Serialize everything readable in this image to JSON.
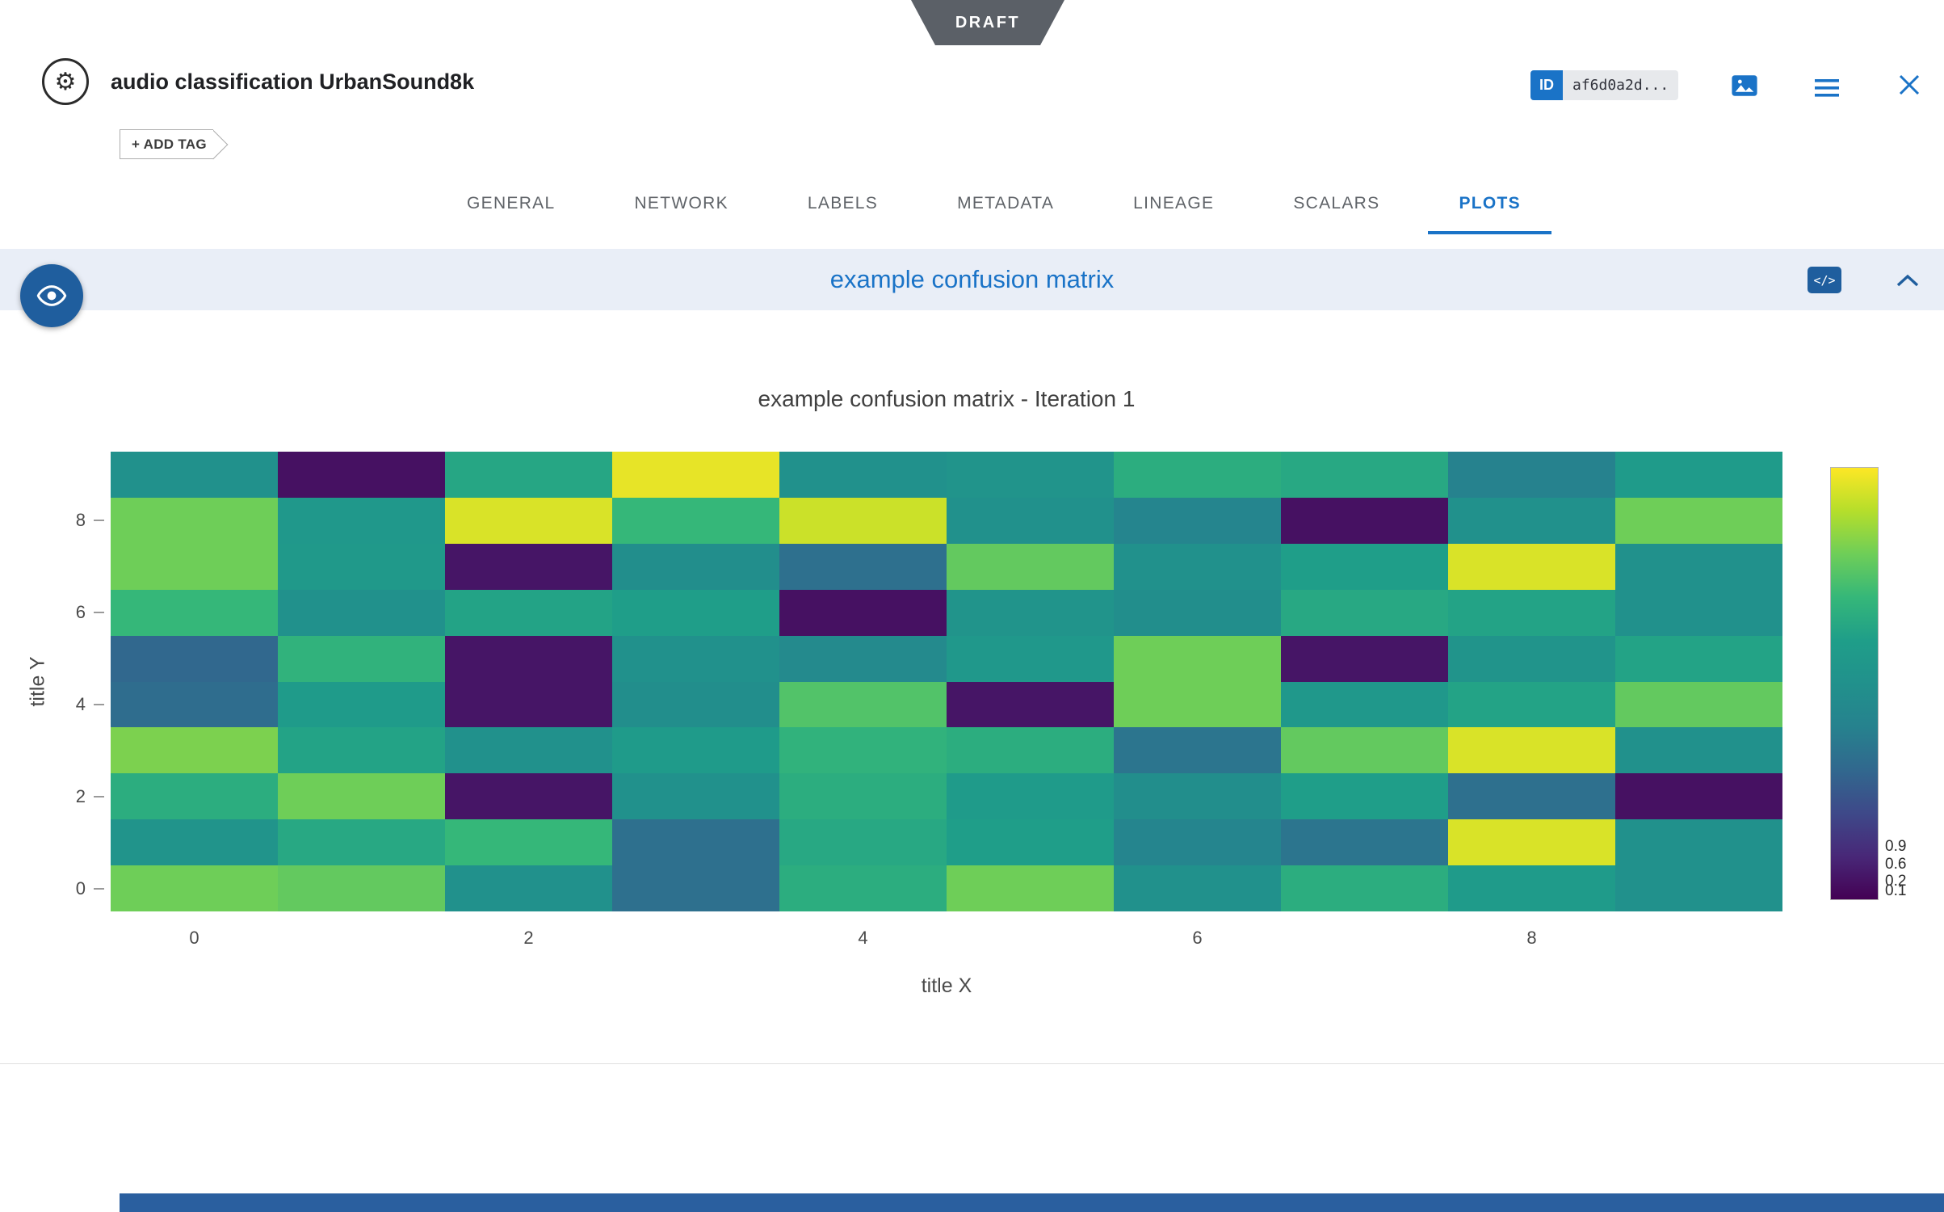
{
  "ribbon": {
    "label": "DRAFT"
  },
  "header": {
    "title": "audio classification UrbanSound8k",
    "add_tag_label": "+ ADD TAG",
    "id_badge": {
      "label": "ID",
      "value": "af6d0a2d..."
    }
  },
  "tabs": {
    "items": [
      {
        "label": "GENERAL",
        "active": false
      },
      {
        "label": "NETWORK",
        "active": false
      },
      {
        "label": "LABELS",
        "active": false
      },
      {
        "label": "METADATA",
        "active": false
      },
      {
        "label": "LINEAGE",
        "active": false
      },
      {
        "label": "SCALARS",
        "active": false
      },
      {
        "label": "PLOTS",
        "active": true
      }
    ]
  },
  "section": {
    "title": "example confusion matrix",
    "code_icon_label": "</>"
  },
  "chart_data": {
    "type": "heatmap",
    "title": "example confusion matrix - Iteration 1",
    "xlabel": "title X",
    "ylabel": "title Y",
    "x_ticks": [
      0,
      2,
      4,
      6,
      8
    ],
    "y_ticks": [
      0,
      2,
      4,
      6,
      8
    ],
    "x_range": [
      -0.5,
      9.5
    ],
    "y_range": [
      -0.5,
      9.5
    ],
    "grid": false,
    "colormap": "viridis",
    "viridis_stops": [
      "#440154",
      "#482878",
      "#3e4989",
      "#31688e",
      "#26828e",
      "#21918c",
      "#1f9e89",
      "#35b779",
      "#6ece58",
      "#b5de2b",
      "#fde725"
    ],
    "colorbar_tick_labels": [
      "0.9",
      "0.6",
      "0.2",
      "0.1"
    ],
    "rows_top_to_bottom": [
      [
        0.5,
        0.04,
        0.63,
        0.97,
        0.5,
        0.52,
        0.66,
        0.64,
        0.4,
        0.58
      ],
      [
        0.8,
        0.55,
        0.95,
        0.7,
        0.93,
        0.5,
        0.42,
        0.04,
        0.5,
        0.8
      ],
      [
        0.8,
        0.56,
        0.05,
        0.48,
        0.33,
        0.78,
        0.5,
        0.6,
        0.95,
        0.5
      ],
      [
        0.7,
        0.5,
        0.62,
        0.6,
        0.04,
        0.52,
        0.48,
        0.64,
        0.62,
        0.5
      ],
      [
        0.3,
        0.68,
        0.05,
        0.5,
        0.45,
        0.55,
        0.8,
        0.05,
        0.52,
        0.62
      ],
      [
        0.32,
        0.58,
        0.05,
        0.48,
        0.75,
        0.05,
        0.8,
        0.55,
        0.62,
        0.78
      ],
      [
        0.82,
        0.62,
        0.5,
        0.58,
        0.68,
        0.66,
        0.35,
        0.78,
        0.95,
        0.5
      ],
      [
        0.66,
        0.8,
        0.05,
        0.5,
        0.66,
        0.58,
        0.48,
        0.6,
        0.33,
        0.04
      ],
      [
        0.52,
        0.64,
        0.7,
        0.33,
        0.64,
        0.6,
        0.42,
        0.35,
        0.95,
        0.5
      ],
      [
        0.8,
        0.78,
        0.5,
        0.33,
        0.66,
        0.8,
        0.5,
        0.66,
        0.58,
        0.5
      ]
    ]
  },
  "colors": {
    "accent_blue": "#1a73c7",
    "dark_blue": "#1f5e9e",
    "section_bar_bg": "#e9eef7",
    "ribbon_bg": "#5b6067",
    "footer_bg": "#2a5f9f"
  }
}
